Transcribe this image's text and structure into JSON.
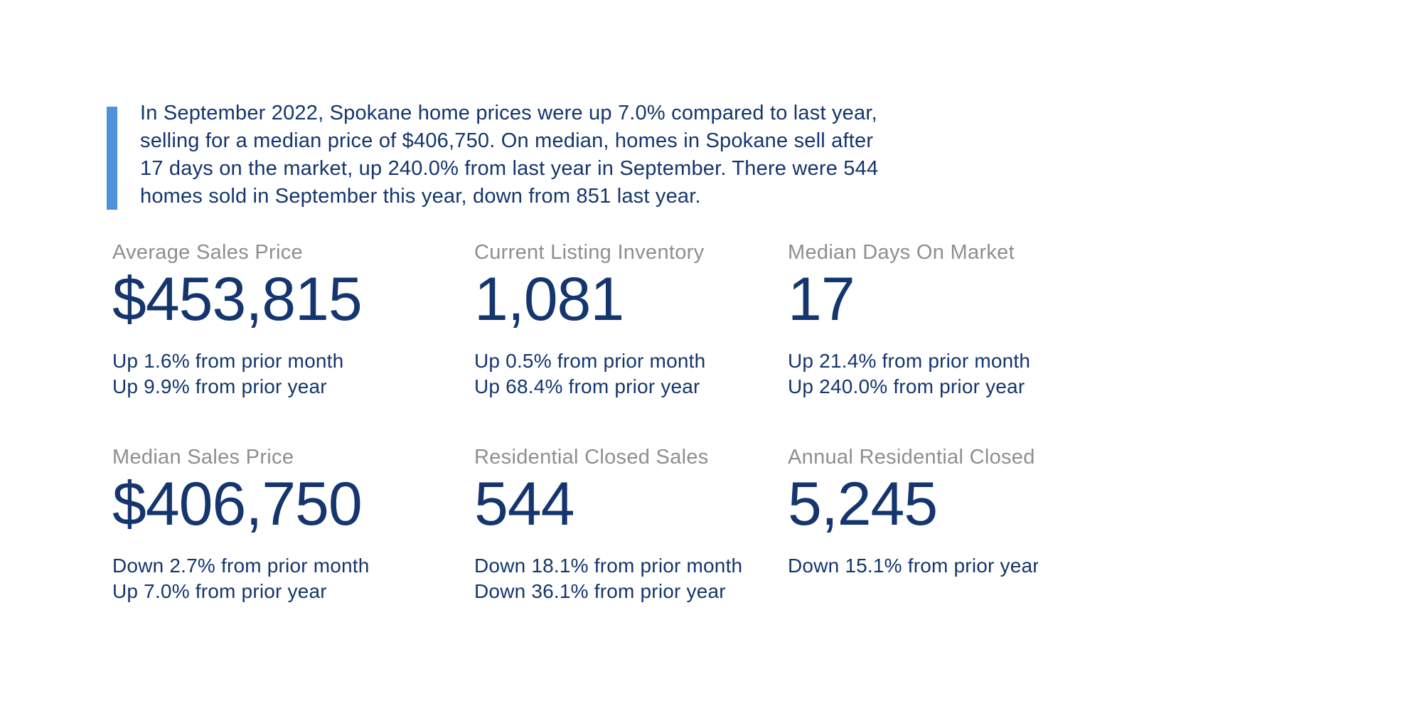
{
  "colors": {
    "background": "#ffffff",
    "accent_bar_blue": "#4d92db",
    "navy_text": "#14356e",
    "label_gray": "#8e8e8e"
  },
  "summary": {
    "text": "In September 2022, Spokane home prices were up 7.0% compared to last year,\nselling for a median price of $406,750. On median, homes in Spokane sell after\n17 days on the market, up 240.0% from last year in September. There were 544\nhomes sold in September this year, down from 851 last year."
  },
  "cards": [
    {
      "label": "Average Sales Price",
      "value": "$453,815",
      "line1": "Up 1.6% from prior month",
      "line2": "Up 9.9% from prior year"
    },
    {
      "label": "Current Listing Inventory",
      "value": "1,081",
      "line1": "Up 0.5% from prior month",
      "line2": "Up 68.4% from prior year"
    },
    {
      "label": "Median Days On Market",
      "value": "17",
      "line1": "Up 21.4% from prior month",
      "line2": "Up 240.0% from prior year"
    },
    {
      "label": "Median Sales Price",
      "value": "$406,750",
      "line1": "Down 2.7% from prior month",
      "line2": "Up 7.0% from prior year"
    },
    {
      "label": "Residential Closed Sales",
      "value": "544",
      "line1": "Down 18.1% from prior month",
      "line2": "Down 36.1% from prior year"
    },
    {
      "label": "Annual Residential Closed",
      "value": "5,245",
      "line1": "Down 15.1% from prior year",
      "line2": ""
    }
  ]
}
